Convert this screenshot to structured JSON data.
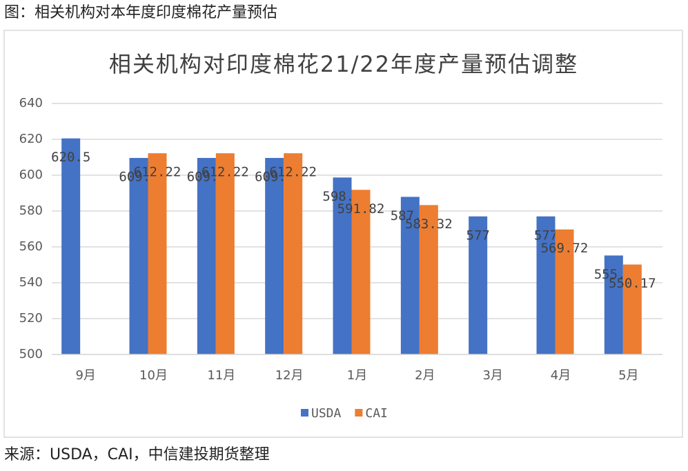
{
  "header": {
    "caption": "图：相关机构对本年度印度棉花产量预估"
  },
  "chart_data": {
    "type": "bar",
    "title": "相关机构对印度棉花21/22年度产量预估调整",
    "categories": [
      "9月",
      "10月",
      "11月",
      "12月",
      "1月",
      "2月",
      "3月",
      "4月",
      "5月"
    ],
    "series": [
      {
        "name": "USDA",
        "color": "#4472c4",
        "values": [
          620.5,
          609.6,
          609.6,
          609.6,
          598.7,
          587.9,
          577,
          577,
          555.2
        ]
      },
      {
        "name": "CAI",
        "color": "#ed7d31",
        "values": [
          null,
          612.22,
          612.22,
          612.22,
          591.82,
          583.32,
          null,
          569.72,
          550.17
        ]
      }
    ],
    "ylim": [
      500,
      640
    ],
    "yticks": [
      500,
      520,
      540,
      560,
      580,
      600,
      620,
      640
    ],
    "grid": true,
    "legend": "bottom"
  },
  "footer": {
    "source": "来源：USDA，CAI，中信建投期货整理"
  }
}
